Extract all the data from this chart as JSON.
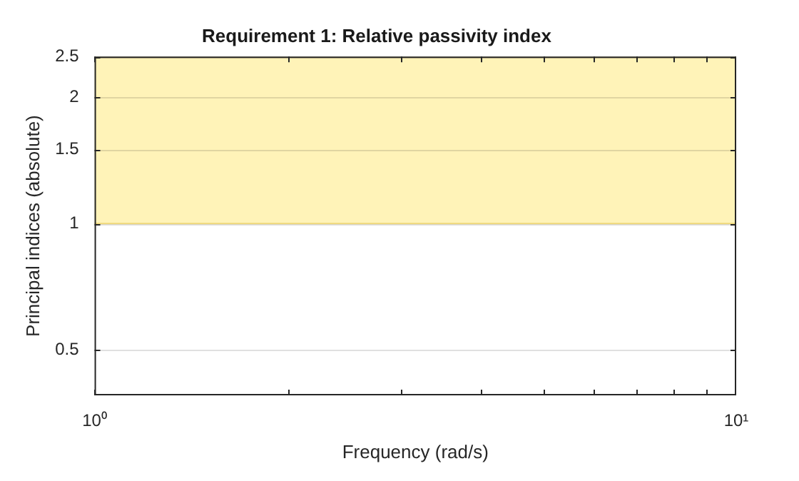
{
  "chart_data": {
    "type": "line",
    "title": "Requirement 1: Relative passivity index",
    "xlabel": "Frequency (rad/s)",
    "ylabel": "Principal indices (absolute)",
    "log": "xy",
    "xlim": [
      1,
      10
    ],
    "xticks": [
      {
        "value": 1,
        "label": "10⁰"
      },
      {
        "value": 2,
        "label": null
      },
      {
        "value": 3,
        "label": null
      },
      {
        "value": 4,
        "label": null
      },
      {
        "value": 5,
        "label": null
      },
      {
        "value": 6,
        "label": null
      },
      {
        "value": 7,
        "label": null
      },
      {
        "value": 8,
        "label": null
      },
      {
        "value": 9,
        "label": null
      },
      {
        "value": 10,
        "label": "10¹"
      }
    ],
    "ylim": [
      0.39,
      2.5
    ],
    "yticks": [
      0.5,
      1,
      1.5,
      2,
      2.5
    ],
    "grid": "y",
    "legend": false,
    "bands": [
      {
        "axis": "y",
        "from": 1,
        "to": 2.5,
        "color": "#fff3b8"
      }
    ],
    "ref_lines": [
      {
        "axis": "y",
        "value": 1,
        "color": "#efd87a"
      }
    ]
  }
}
